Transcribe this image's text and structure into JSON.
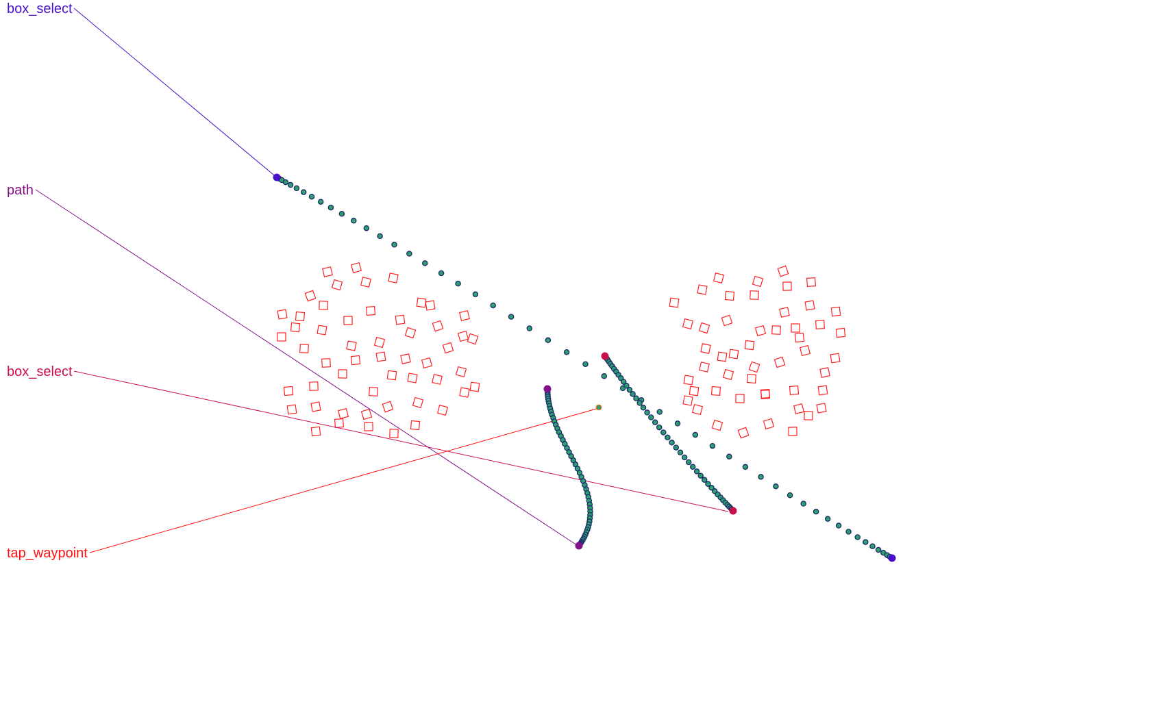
{
  "gestures": [
    {
      "label": "box_select",
      "color": "#4a10c8"
    },
    {
      "label": "path",
      "color": "#82108a"
    },
    {
      "label": "box_select",
      "color": "#c8104a"
    },
    {
      "label": "tap_waypoint",
      "color": "#ff1010"
    }
  ],
  "colors": {
    "target_outline": "#ff2020",
    "point_fill": "#2f9e6e",
    "point_outline": "#1a2a6a",
    "background": "#ffffff"
  },
  "icons": {
    "targets": "rotated-square-outline",
    "trajectory_points": "filled-circle-dot"
  }
}
